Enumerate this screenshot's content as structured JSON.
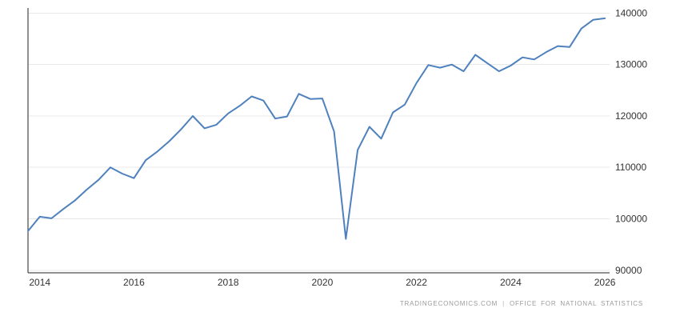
{
  "chart_data": {
    "type": "line",
    "title": "",
    "xlabel": "",
    "ylabel": "",
    "x": [
      2013.75,
      2014,
      2014.25,
      2014.5,
      2014.75,
      2015,
      2015.25,
      2015.5,
      2015.75,
      2016,
      2016.25,
      2016.5,
      2016.75,
      2017,
      2017.25,
      2017.5,
      2017.75,
      2018,
      2018.25,
      2018.5,
      2018.75,
      2019,
      2019.25,
      2019.5,
      2019.75,
      2020,
      2020.25,
      2020.5,
      2020.75,
      2021,
      2021.25,
      2021.5,
      2021.75,
      2022,
      2022.25,
      2022.5,
      2022.75,
      2023,
      2023.25,
      2023.5,
      2023.75,
      2024,
      2024.25,
      2024.5,
      2024.75,
      2025,
      2025.25,
      2025.5,
      2025.75,
      2026
    ],
    "series": [
      {
        "name": "value",
        "values": [
          97600,
          100400,
          100100,
          101900,
          103600,
          105700,
          107600,
          110000,
          108800,
          107900,
          111400,
          113100,
          115100,
          117400,
          120000,
          117600,
          118300,
          120500,
          122000,
          123800,
          123000,
          119500,
          119900,
          124300,
          123300,
          123400,
          117000,
          96100,
          113400,
          117900,
          115600,
          120700,
          122200,
          126400,
          129900,
          129400,
          130000,
          128700,
          131900,
          130300,
          128700,
          129800,
          131400,
          131000,
          132400,
          133600,
          133400,
          137000,
          138700,
          139000
        ]
      }
    ],
    "x_ticks": [
      "2014",
      "2016",
      "2018",
      "2020",
      "2022",
      "2024",
      "2026"
    ],
    "x_tick_positions": [
      2014,
      2016,
      2018,
      2020,
      2022,
      2024,
      2026
    ],
    "y_ticks": [
      "90000",
      "100000",
      "110000",
      "120000",
      "130000",
      "140000"
    ],
    "y_tick_values": [
      90000,
      100000,
      110000,
      120000,
      130000,
      140000
    ],
    "xlim": [
      2013.75,
      2026.1
    ],
    "ylim": [
      89500,
      141000
    ],
    "grid": "horizontal",
    "legend": "none",
    "colors": {
      "line": "#4e81bd",
      "grid": "#e8e8e8",
      "axis": "#222222",
      "tick_text": "#333333"
    }
  },
  "footer": {
    "left": "TRADINGECONOMICS.COM",
    "separator": "|",
    "right": "OFFICE FOR NATIONAL STATISTICS"
  }
}
